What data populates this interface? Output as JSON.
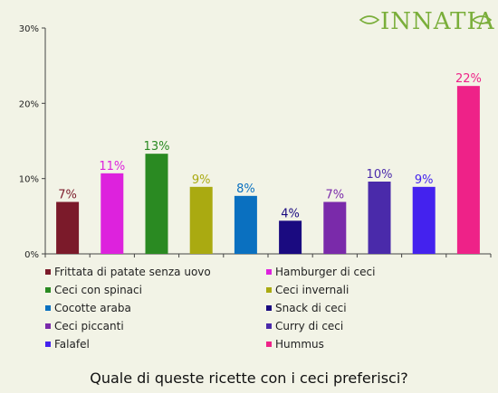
{
  "logo": {
    "text": "INNATIA"
  },
  "chart_data": {
    "type": "bar",
    "title": "Quale di queste ricette con i ceci preferisci?",
    "xlabel": "",
    "ylabel": "",
    "ylim": [
      0,
      30
    ],
    "yticks": [
      0,
      10,
      20,
      30
    ],
    "ytick_labels": [
      "0%",
      "10%",
      "20%",
      "30%"
    ],
    "grid": false,
    "legend_placement": "bottom",
    "categories": [
      "Frittata di patate senza uovo",
      "Hamburger di ceci",
      "Ceci con spinaci",
      "Ceci invernali",
      "Cocotte araba",
      "Snack di ceci",
      "Ceci piccanti",
      "Curry di ceci",
      "Falafel",
      "Hummus"
    ],
    "values": [
      6.9,
      10.7,
      13.3,
      8.9,
      7.7,
      4.4,
      6.9,
      9.6,
      8.9,
      22.3
    ],
    "data_labels": [
      "7%",
      "11%",
      "13%",
      "9%",
      "8%",
      "4%",
      "7%",
      "10%",
      "9%",
      "22%"
    ],
    "colors": [
      "#7b1a2a",
      "#dd22dd",
      "#2a8a22",
      "#aaaa11",
      "#0a70c0",
      "#1a0a80",
      "#7a2aaa",
      "#4a2aaa",
      "#4422ee",
      "#ee2288"
    ]
  }
}
